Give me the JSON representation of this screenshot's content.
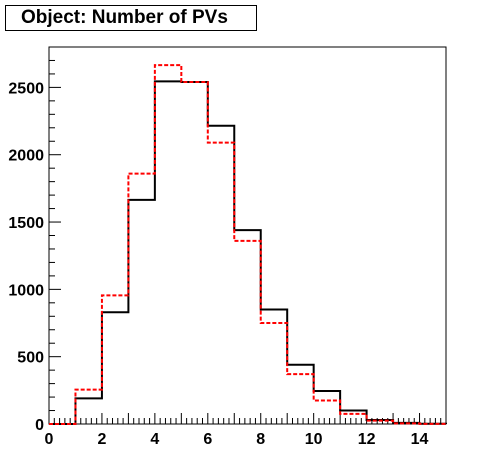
{
  "chart_data": {
    "type": "histogram",
    "title": "Object: Number of PVs",
    "xlabel": "",
    "ylabel": "",
    "xlim": [
      0,
      15
    ],
    "ylim": [
      0,
      2800
    ],
    "bin_edges": [
      0,
      1,
      2,
      3,
      4,
      5,
      6,
      7,
      8,
      9,
      10,
      11,
      12,
      13,
      14,
      15
    ],
    "x_ticks": [
      0,
      2,
      4,
      6,
      8,
      10,
      12,
      14
    ],
    "y_ticks": [
      0,
      500,
      1000,
      1500,
      2000,
      2500
    ],
    "grid": false,
    "series": [
      {
        "style": "solid",
        "color": "#000000",
        "values": [
          0,
          190,
          830,
          1665,
          2545,
          2540,
          2215,
          1440,
          850,
          440,
          245,
          100,
          30,
          8,
          2
        ]
      },
      {
        "style": "dashed",
        "color": "#ff0000",
        "values": [
          0,
          255,
          955,
          1860,
          2665,
          2540,
          2090,
          1360,
          750,
          370,
          175,
          75,
          25,
          5,
          1
        ]
      }
    ]
  }
}
